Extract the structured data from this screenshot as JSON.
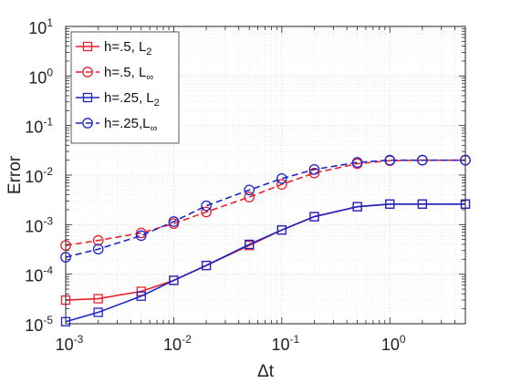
{
  "chart_data": {
    "type": "line",
    "xlabel": "Δt",
    "ylabel": "Error",
    "xscale": "log",
    "yscale": "log",
    "xlim": [
      0.001,
      5
    ],
    "ylim": [
      1e-05,
      10
    ],
    "grid": true,
    "minor_grid": true,
    "legend_position": "top-left",
    "x_ticks": [
      {
        "base": "10",
        "exp": "-3"
      },
      {
        "base": "10",
        "exp": "-2"
      },
      {
        "base": "10",
        "exp": "-1"
      },
      {
        "base": "10",
        "exp": "0"
      }
    ],
    "y_ticks": [
      {
        "base": "10",
        "exp": "-5"
      },
      {
        "base": "10",
        "exp": "-4"
      },
      {
        "base": "10",
        "exp": "-3"
      },
      {
        "base": "10",
        "exp": "-2"
      },
      {
        "base": "10",
        "exp": "-1"
      },
      {
        "base": "10",
        "exp": "0"
      },
      {
        "base": "10",
        "exp": "1"
      }
    ],
    "x": [
      0.001,
      0.002,
      0.005,
      0.01,
      0.02,
      0.05,
      0.1,
      0.2,
      0.5,
      1,
      2,
      5
    ],
    "series": [
      {
        "name": "h=.5, L",
        "name_sub": "2",
        "color": "#e8222a",
        "dash": "solid",
        "marker": "square",
        "values": [
          3e-05,
          3.2e-05,
          4.5e-05,
          7.5e-05,
          0.00015,
          0.00038,
          0.00078,
          0.00145,
          0.0023,
          0.0026,
          0.0026,
          0.0026
        ]
      },
      {
        "name": "h=.5, L",
        "name_sub": "∞",
        "color": "#e8222a",
        "dash": "dashed",
        "marker": "circle",
        "values": [
          0.00038,
          0.00048,
          0.00068,
          0.00105,
          0.0018,
          0.0036,
          0.0065,
          0.011,
          0.017,
          0.0195,
          0.02,
          0.02
        ]
      },
      {
        "name": "h=.25, L",
        "name_sub": "2",
        "color": "#1d24c8",
        "dash": "solid",
        "marker": "square",
        "values": [
          1.1e-05,
          1.7e-05,
          3.6e-05,
          7.5e-05,
          0.00015,
          0.0004,
          0.00078,
          0.00145,
          0.0023,
          0.0026,
          0.0026,
          0.0026
        ]
      },
      {
        "name": "h=.25,L",
        "name_sub": "∞",
        "color": "#1d24c8",
        "dash": "dashed",
        "marker": "circle",
        "values": [
          0.00022,
          0.00032,
          0.0006,
          0.00115,
          0.0024,
          0.005,
          0.0085,
          0.013,
          0.018,
          0.02,
          0.02,
          0.02
        ]
      }
    ]
  }
}
